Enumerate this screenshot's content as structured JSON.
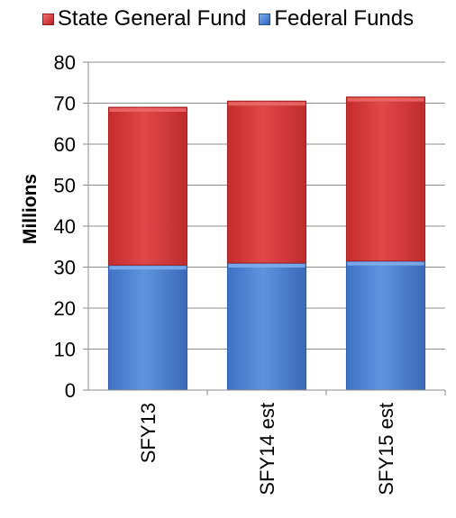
{
  "chart_data": {
    "type": "bar",
    "stacked": true,
    "categories": [
      "SFY13",
      "SFY14 est",
      "SFY15 est"
    ],
    "series": [
      {
        "name": "Federal Funds",
        "values": [
          30.5,
          31,
          31.5
        ],
        "color": "#4a7fd0"
      },
      {
        "name": "State General Fund",
        "values": [
          38.5,
          39.5,
          40
        ],
        "color": "#cf3434"
      }
    ],
    "legend_order": [
      "State General Fund",
      "Federal Funds"
    ],
    "ylabel": "Millions",
    "xlabel": "",
    "ylim": [
      0,
      80
    ],
    "yticks": [
      0,
      10,
      20,
      30,
      40,
      50,
      60,
      70,
      80
    ],
    "grid": true,
    "legend_position": "top"
  }
}
